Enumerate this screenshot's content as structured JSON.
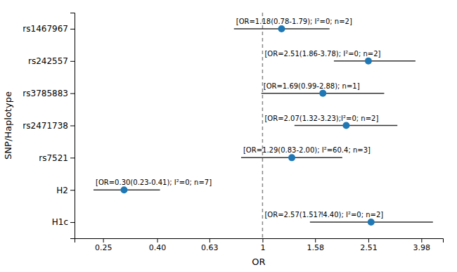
{
  "chart_data": {
    "type": "forest",
    "categories": [
      "rs1467967",
      "rs242557",
      "rs3785883",
      "rs2471738",
      "rs7521",
      "H2",
      "H1c"
    ],
    "values": [
      1.18,
      2.51,
      1.69,
      2.07,
      1.29,
      0.3,
      2.57
    ],
    "ci_low": [
      0.78,
      1.86,
      0.99,
      1.32,
      0.83,
      0.23,
      1.51
    ],
    "ci_high": [
      1.79,
      3.78,
      2.88,
      3.23,
      2.0,
      0.41,
      4.4
    ],
    "annotations": [
      "[OR=1.18(0.78-1.79); I²=0; n=2]",
      "[OR=2.51(1.86-3.78); I²=0; n=2]",
      "[OR=1.69(0.99-2.88); n=1]",
      "[OR=2.07(1.32-3.23);I²=0; n=2]",
      "[OR=1.29(0.83-2.00); I²=60.4; n=3]",
      "[OR=0.30(0.23-0.41); I²=0; n=7]",
      "[OR=2.57(1.51⁈4.40); I²=0; n=2]"
    ],
    "ref_line": 1,
    "x_label": "OR",
    "y_label": "SNP/Haplotype",
    "log": "x",
    "xlim": [
      0.195,
      4.8
    ],
    "xticks": [
      0.25,
      {
        "value": 0.4,
        "label": "0.40"
      },
      0.63,
      1,
      1.58,
      2.51,
      3.98
    ],
    "grid": false
  }
}
